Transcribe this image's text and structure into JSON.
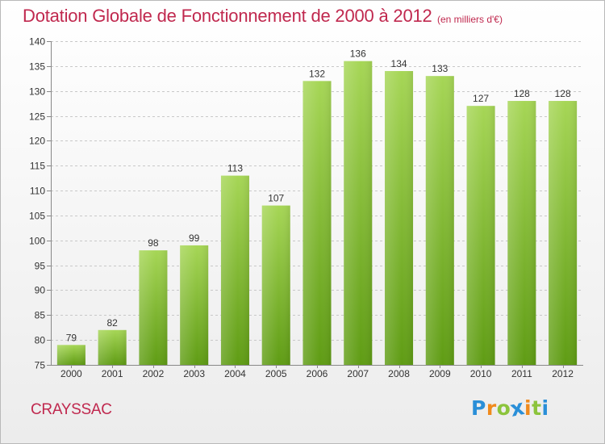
{
  "title": "Dotation Globale de Fonctionnement de 2000 à 2012",
  "subtitle": "(en milliers d'€)",
  "commune": "CRAYSSAC",
  "logo": {
    "text": "Proxiti",
    "letters": [
      {
        "char": "P",
        "color": "#2a8fd8"
      },
      {
        "char": "r",
        "color": "#f08a1c"
      },
      {
        "char": "o",
        "color": "#8cc43c"
      },
      {
        "char": "x",
        "color": "#2a8fd8"
      },
      {
        "char": "i",
        "color": "#f08a1c"
      },
      {
        "char": "t",
        "color": "#8cc43c"
      },
      {
        "char": "i",
        "color": "#2a8fd8"
      }
    ]
  },
  "chart_data": {
    "type": "bar",
    "title": "Dotation Globale de Fonctionnement de 2000 à 2012",
    "subtitle": "(en milliers d'€)",
    "categories": [
      "2000",
      "2001",
      "2002",
      "2003",
      "2004",
      "2005",
      "2006",
      "2007",
      "2008",
      "2009",
      "2010",
      "2011",
      "2012"
    ],
    "values": [
      79,
      82,
      98,
      99,
      113,
      107,
      132,
      136,
      134,
      133,
      127,
      128,
      128
    ],
    "ylim": [
      75,
      140
    ],
    "yticks": [
      75,
      80,
      85,
      90,
      95,
      100,
      105,
      110,
      115,
      120,
      125,
      130,
      135,
      140
    ],
    "grid": true,
    "legend": "none",
    "bar_color_top": "#a6d656",
    "bar_color_bottom": "#5f9c14",
    "grid_color": "#c8c8c8"
  }
}
